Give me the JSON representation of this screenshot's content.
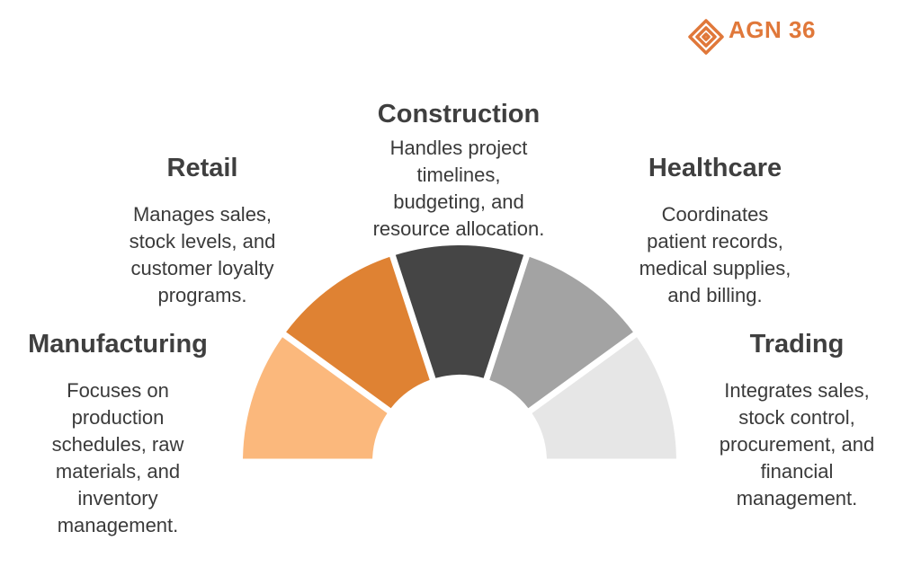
{
  "logo": {
    "name": "AGN 36",
    "tagline": ""
  },
  "segments": [
    {
      "title": "Manufacturing",
      "lines": [
        "Focuses on",
        "production",
        "schedules, raw",
        "materials, and",
        "inventory",
        "management."
      ],
      "color": "#fbb87c"
    },
    {
      "title": "Retail",
      "lines": [
        "Manages sales,",
        "stock levels, and",
        "customer loyalty",
        "programs."
      ],
      "color": "#df8233"
    },
    {
      "title": "Construction",
      "lines": [
        "Handles project",
        "timelines,",
        "budgeting, and",
        "resource allocation."
      ],
      "color": "#454545"
    },
    {
      "title": "Healthcare",
      "lines": [
        "Coordinates",
        "patient records,",
        "medical supplies,",
        "and billing."
      ],
      "color": "#a3a3a3"
    },
    {
      "title": "Trading",
      "lines": [
        "Integrates sales,",
        "stock control,",
        "procurement, and",
        "financial",
        "management."
      ],
      "color": "#e6e6e6"
    }
  ]
}
